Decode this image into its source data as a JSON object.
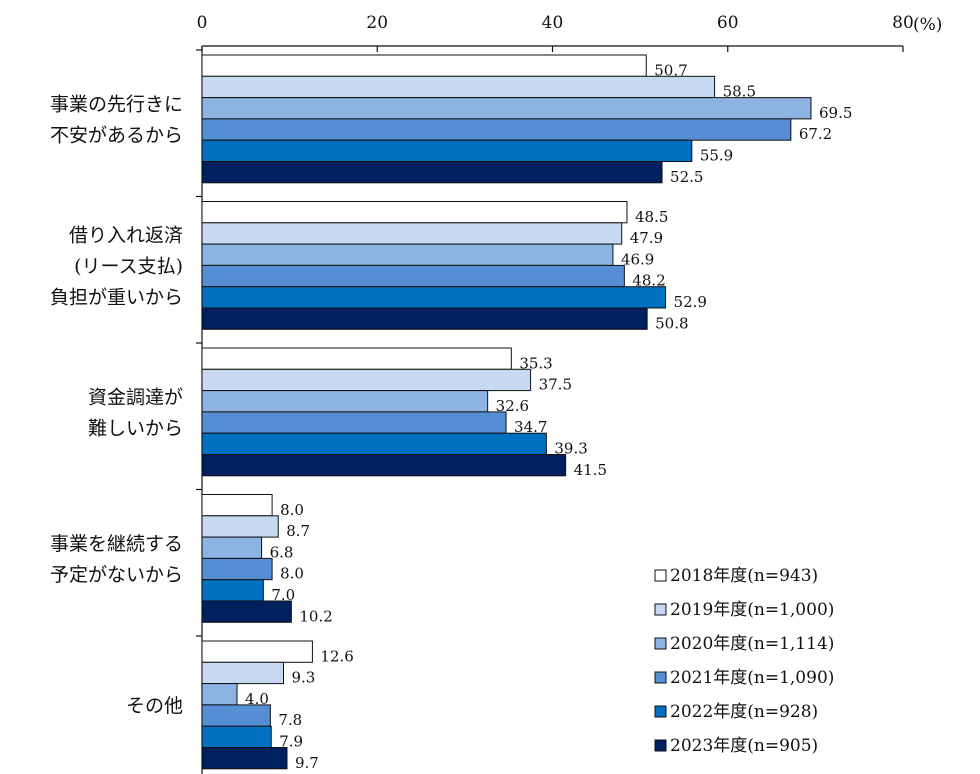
{
  "chart_data": {
    "type": "bar",
    "orientation": "horizontal",
    "unit": "(%)",
    "xlim": [
      0,
      80
    ],
    "x_ticks": [
      "0",
      "20",
      "40",
      "60",
      "80"
    ],
    "grid": false,
    "legend_position": "bottom-right",
    "categories": [
      [
        "事業の先行きに",
        "不安があるから"
      ],
      [
        "借り入れ返済",
        "(リース支払)",
        "負担が重いから"
      ],
      [
        "資金調達が",
        "難しいから"
      ],
      [
        "事業を継続する",
        "予定がないから"
      ],
      [
        "その他"
      ]
    ],
    "series": [
      {
        "name": "2018年度(n=943)",
        "color": "#ffffff",
        "values": [
          50.7,
          48.5,
          35.3,
          8.0,
          12.6
        ],
        "labels": [
          "50.7",
          "48.5",
          "35.3",
          "8.0",
          "12.6"
        ]
      },
      {
        "name": "2019年度(n=1,000)",
        "color": "#c6d9f1",
        "values": [
          58.5,
          47.9,
          37.5,
          8.7,
          9.3
        ],
        "labels": [
          "58.5",
          "47.9",
          "37.5",
          "8.7",
          "9.3"
        ]
      },
      {
        "name": "2020年度(n=1,114)",
        "color": "#8db3e2",
        "values": [
          69.5,
          46.9,
          32.6,
          6.8,
          4.0
        ],
        "labels": [
          "69.5",
          "46.9",
          "32.6",
          "6.8",
          "4.0"
        ]
      },
      {
        "name": "2021年度(n=1,090)",
        "color": "#558ed5",
        "values": [
          67.2,
          48.2,
          34.7,
          8.0,
          7.8
        ],
        "labels": [
          "67.2",
          "48.2",
          "34.7",
          "8.0",
          "7.8"
        ]
      },
      {
        "name": "2022年度(n=928)",
        "color": "#0070c0",
        "values": [
          55.9,
          52.9,
          39.3,
          7.0,
          7.9
        ],
        "labels": [
          "55.9",
          "52.9",
          "39.3",
          "7.0",
          "7.9"
        ]
      },
      {
        "name": "2023年度(n=905)",
        "color": "#002060",
        "values": [
          52.5,
          50.8,
          41.5,
          10.2,
          9.7
        ],
        "labels": [
          "52.5",
          "50.8",
          "41.5",
          "10.2",
          "9.7"
        ]
      }
    ]
  }
}
